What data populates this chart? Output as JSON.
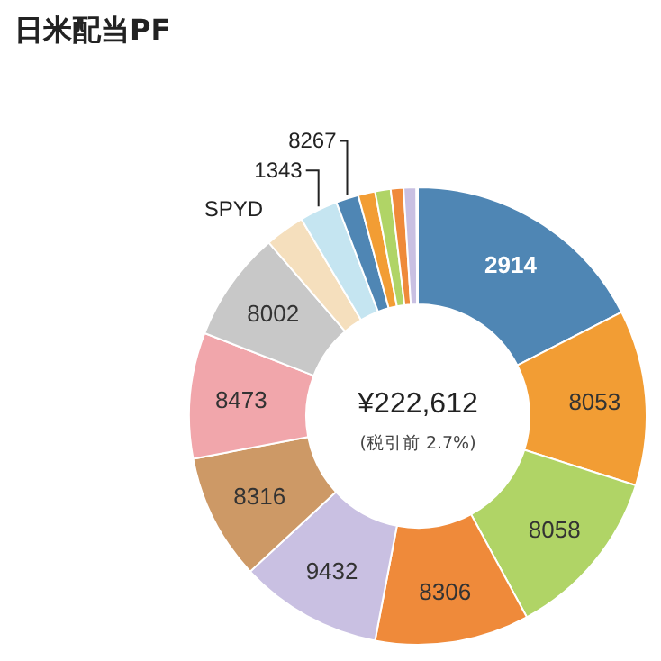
{
  "chart_data": {
    "type": "donut",
    "title": "日米配当PF",
    "categories": [
      "2914",
      "8053",
      "8058",
      "8306",
      "9432",
      "8316",
      "8473",
      "8002",
      "SPYD",
      "1343",
      "8267",
      null,
      null,
      null,
      null,
      null
    ],
    "values": [
      17.5,
      12.4,
      12.2,
      10.9,
      10.1,
      8.9,
      8.9,
      7.8,
      2.8,
      2.7,
      1.6,
      1.2,
      1.1,
      0.9,
      0.9,
      0.1
    ],
    "colors": [
      "#4f86b4",
      "#f29d34",
      "#b0d466",
      "#ef8a3a",
      "#c9c0e2",
      "#cd9966",
      "#f1a6ab",
      "#c8c8c8",
      "#f5dfbd",
      "#c5e5f1",
      "#4f86b4",
      "#f29d34",
      "#b0d466",
      "#ef8a3a",
      "#c9c0e2",
      "#cd9966"
    ],
    "annotations": [
      "¥222,612",
      "(税引前 2.7%)"
    ]
  }
}
